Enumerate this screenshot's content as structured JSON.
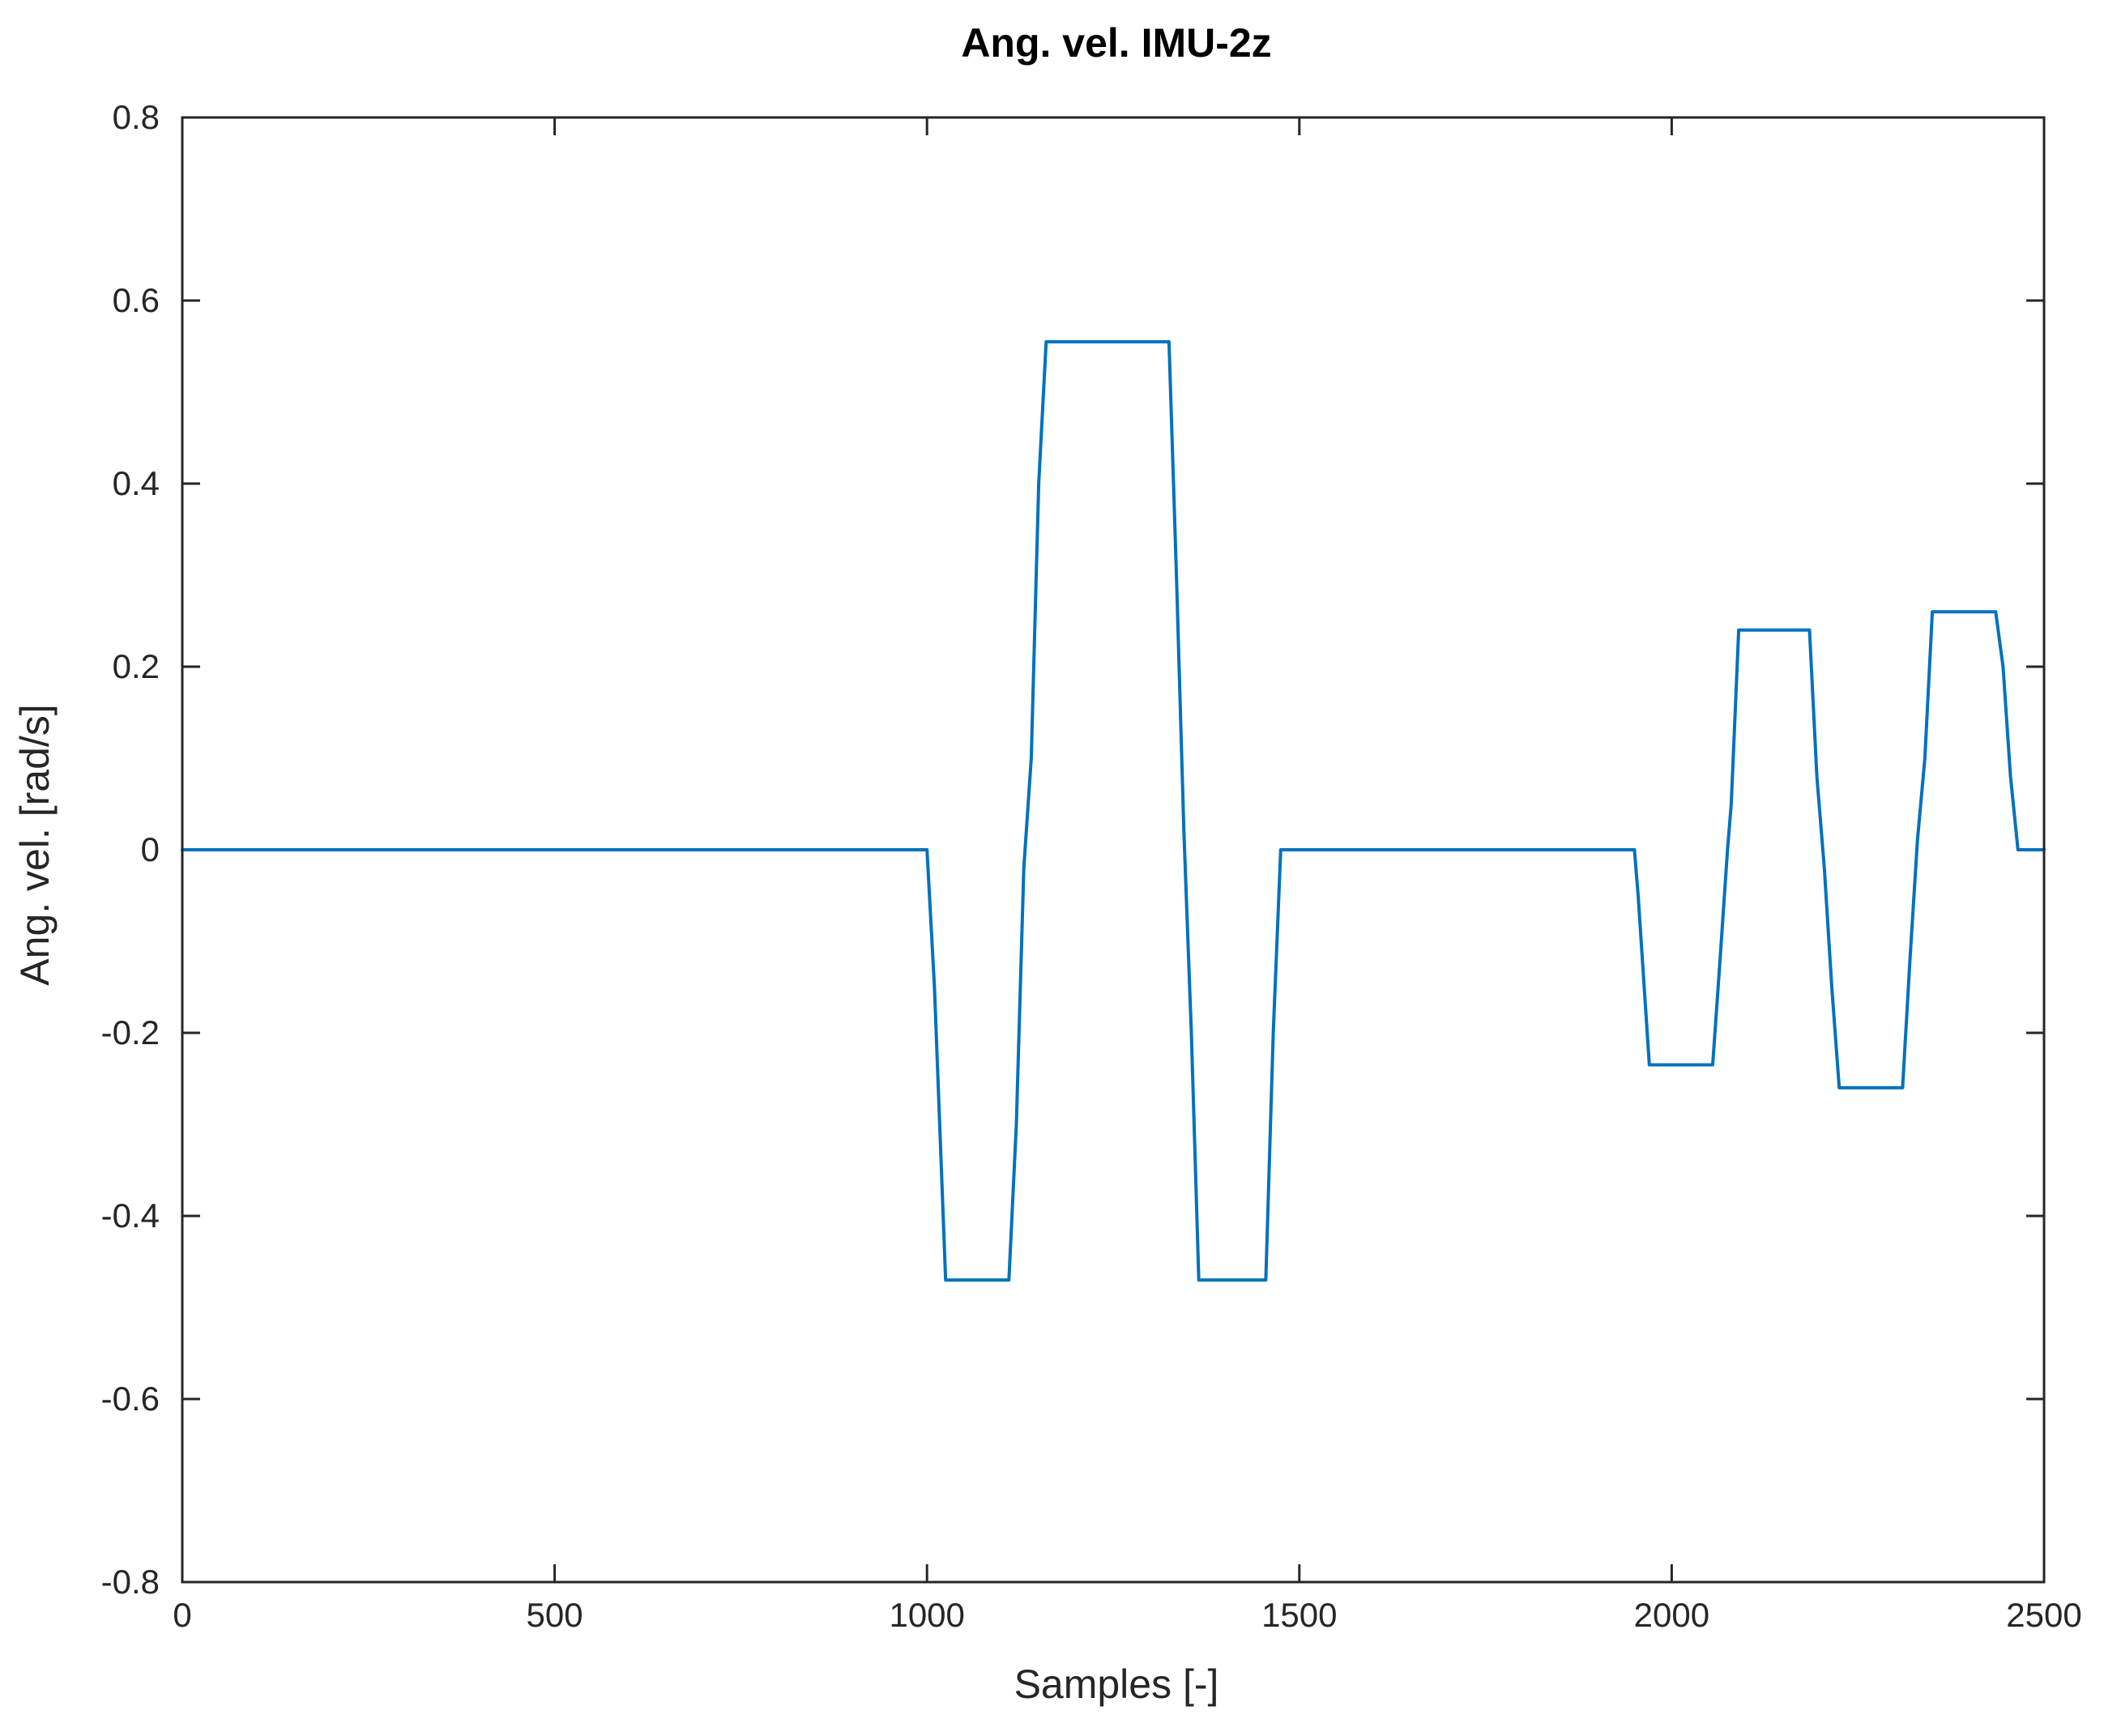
{
  "chart_data": {
    "type": "line",
    "title": "Ang. vel. IMU-2z",
    "xlabel": "Samples [-]",
    "ylabel": "Ang. vel. [rad/s]",
    "xlim": [
      0,
      2500
    ],
    "ylim": [
      -0.8,
      0.8
    ],
    "xticks": [
      0,
      500,
      1000,
      1500,
      2000,
      2500
    ],
    "yticks": [
      0.8,
      0.6,
      0.4,
      0.2,
      0,
      -0.2,
      -0.4,
      -0.6,
      -0.8
    ],
    "xtick_labels": [
      "0",
      "500",
      "1000",
      "1500",
      "2000",
      "2500"
    ],
    "ytick_labels": [
      "0.8",
      "0.6",
      "0.4",
      "0.2",
      "0",
      "-0.2",
      "-0.4",
      "-0.6",
      "-0.8"
    ],
    "grid": false,
    "line_color": "#0072BD",
    "series": [
      {
        "x": [
          0,
          1000,
          1010,
          1025,
          1110,
          1120,
          1130,
          1140,
          1150,
          1160,
          1325,
          1335,
          1345,
          1355,
          1365,
          1375,
          1455,
          1465,
          1475,
          1480,
          1950,
          1955,
          1970,
          2055,
          2065,
          2075,
          2080,
          2090,
          2095,
          2185,
          2195,
          2205,
          2215,
          2225,
          2235,
          2310,
          2320,
          2330,
          2340,
          2350,
          2360,
          2435,
          2445,
          2455,
          2465,
          2475,
          2500
        ],
        "y": [
          0,
          0,
          -0.15,
          -0.47,
          -0.47,
          -0.3,
          -0.02,
          0.1,
          0.4,
          0.555,
          0.555,
          0.3,
          0.02,
          -0.2,
          -0.47,
          -0.47,
          -0.47,
          -0.2,
          0,
          0,
          0,
          -0.05,
          -0.235,
          -0.235,
          -0.12,
          0,
          0.05,
          0.24,
          0.24,
          0.24,
          0.08,
          -0.02,
          -0.15,
          -0.26,
          -0.26,
          -0.26,
          -0.12,
          0.01,
          0.1,
          0.26,
          0.26,
          0.26,
          0.2,
          0.08,
          0,
          0,
          0
        ]
      }
    ]
  }
}
